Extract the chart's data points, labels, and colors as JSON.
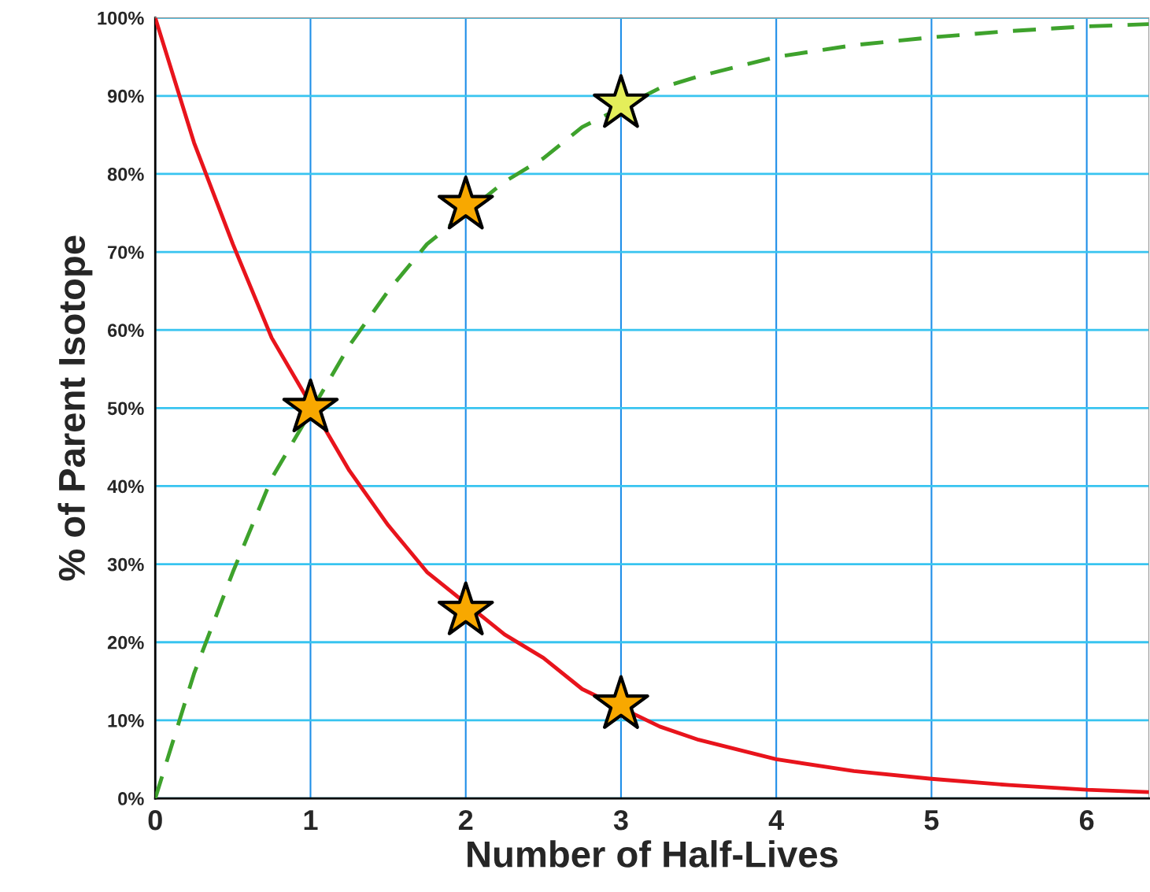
{
  "chart_data": {
    "type": "line",
    "xlabel": "Number of Half-Lives",
    "ylabel": "% of Parent Isotope",
    "xlim": [
      0,
      6.4
    ],
    "xticks": [
      0,
      1,
      2,
      3,
      4,
      5,
      6
    ],
    "ylim": [
      0,
      100
    ],
    "yticks": [
      {
        "value": 0,
        "label": "0%"
      },
      {
        "value": 10,
        "label": "10%"
      },
      {
        "value": 20,
        "label": "20%"
      },
      {
        "value": 30,
        "label": "30%"
      },
      {
        "value": 40,
        "label": "40%"
      },
      {
        "value": 50,
        "label": "50%"
      },
      {
        "value": 60,
        "label": "60%"
      },
      {
        "value": 70,
        "label": "70%"
      },
      {
        "value": 80,
        "label": "80%"
      },
      {
        "value": 90,
        "label": "90%"
      },
      {
        "value": 100,
        "label": "100%"
      }
    ],
    "grid": true,
    "series": [
      {
        "color": "#e8141c",
        "line_style": "solid",
        "x": [
          0,
          0.25,
          0.5,
          0.75,
          1.25,
          1.5,
          1.75,
          2.25,
          2.5,
          2.75,
          3.25,
          3.5,
          4,
          4.5,
          5,
          5.5,
          6,
          6.4
        ],
        "values": [
          100,
          84,
          71,
          59,
          42,
          35,
          29,
          21,
          18,
          14,
          9.2,
          7.5,
          5,
          3.5,
          2.5,
          1.7,
          1.1,
          0.8
        ]
      },
      {
        "color": "#3ea22c",
        "line_style": "dashed",
        "x": [
          0,
          0.25,
          0.5,
          0.75,
          1.25,
          1.5,
          1.75,
          2.25,
          2.5,
          2.75,
          3.25,
          3.5,
          4,
          4.5,
          5,
          5.5,
          6,
          6.4
        ],
        "values": [
          0,
          16,
          29,
          41,
          58,
          65,
          71,
          79,
          82,
          86,
          91,
          92.5,
          95,
          96.5,
          97.5,
          98.3,
          98.9,
          99.2
        ]
      },
      {
        "type": "scatter",
        "color": "#f8a800",
        "marker": "star",
        "x": [
          1,
          2,
          2,
          3
        ],
        "values": [
          50,
          24,
          76,
          12
        ]
      },
      {
        "type": "scatter",
        "color": "#e4ee5a",
        "marker": "star",
        "x": [
          3
        ],
        "values": [
          89
        ]
      }
    ]
  }
}
